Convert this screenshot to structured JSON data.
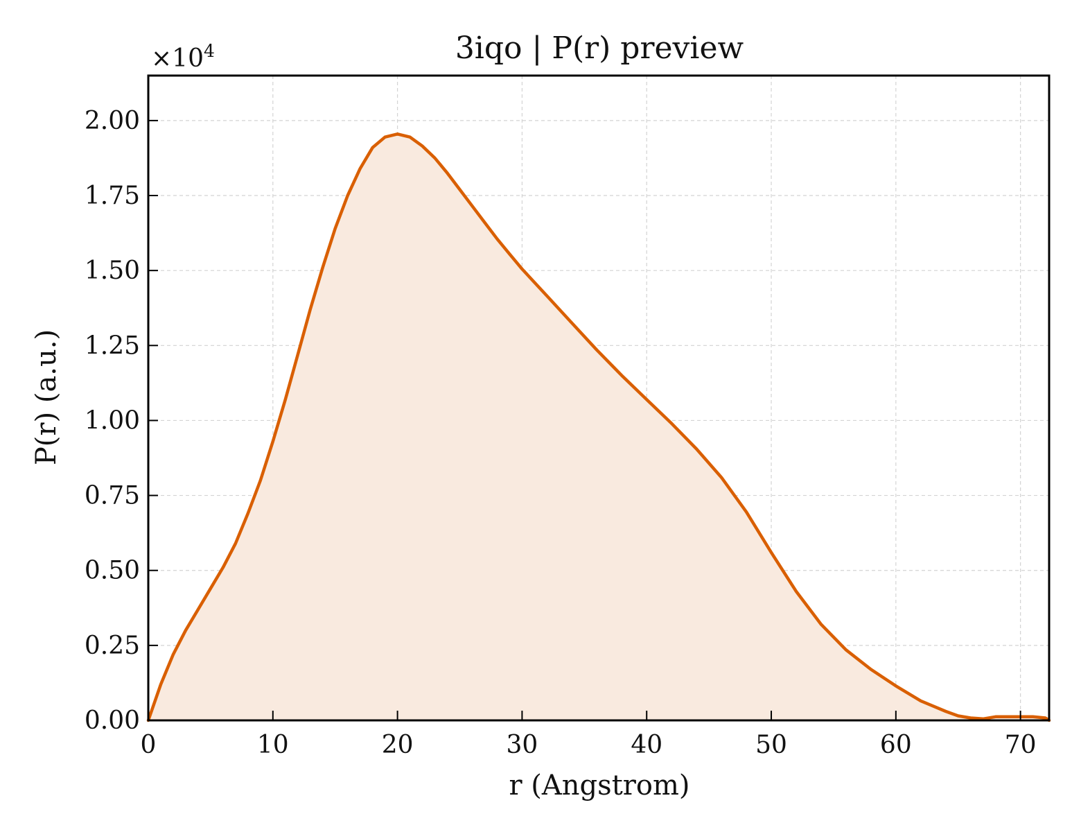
{
  "chart_data": {
    "type": "area",
    "title": "3iqo | P(r) preview",
    "xlabel": "r (Angstrom)",
    "ylabel": "P(r) (a.u.)",
    "y_scale_label": "×10",
    "y_scale_exponent": "4",
    "xlim": [
      0,
      72.3
    ],
    "ylim": [
      0,
      21500
    ],
    "x_ticks": [
      0,
      10,
      20,
      30,
      40,
      50,
      60,
      70
    ],
    "x_tick_labels": [
      "0",
      "10",
      "20",
      "30",
      "40",
      "50",
      "60",
      "70"
    ],
    "y_ticks": [
      0,
      2500,
      5000,
      7500,
      10000,
      12500,
      15000,
      17500,
      20000
    ],
    "y_tick_labels": [
      "0.00",
      "0.25",
      "0.50",
      "0.75",
      "1.00",
      "1.25",
      "1.50",
      "1.75",
      "2.00"
    ],
    "grid": true,
    "colors": {
      "line": "#d95f02",
      "fill": "#f9eadf",
      "grid": "#d3d3d3",
      "axes": "#000000"
    },
    "series": [
      {
        "x": [
          0,
          1,
          2,
          3,
          4,
          5,
          6,
          7,
          8,
          9,
          10,
          11,
          12,
          13,
          14,
          15,
          16,
          17,
          18,
          19,
          20,
          21,
          22,
          23,
          24,
          25,
          26,
          27,
          28,
          29,
          30,
          32,
          34,
          36,
          38,
          40,
          42,
          44,
          46,
          48,
          50,
          52,
          54,
          56,
          58,
          60,
          62,
          64,
          65,
          66,
          67,
          68,
          69,
          70,
          71,
          72,
          72.3
        ],
        "values": [
          0,
          1200,
          2200,
          3000,
          3700,
          4400,
          5100,
          5900,
          6900,
          8000,
          9300,
          10700,
          12200,
          13700,
          15100,
          16400,
          17500,
          18400,
          19100,
          19450,
          19550,
          19450,
          19150,
          18750,
          18250,
          17700,
          17150,
          16600,
          16050,
          15550,
          15050,
          14150,
          13250,
          12350,
          11500,
          10700,
          9900,
          9050,
          8100,
          6950,
          5600,
          4300,
          3200,
          2350,
          1700,
          1150,
          650,
          300,
          150,
          80,
          50,
          120,
          120,
          120,
          120,
          80,
          0
        ]
      }
    ]
  }
}
